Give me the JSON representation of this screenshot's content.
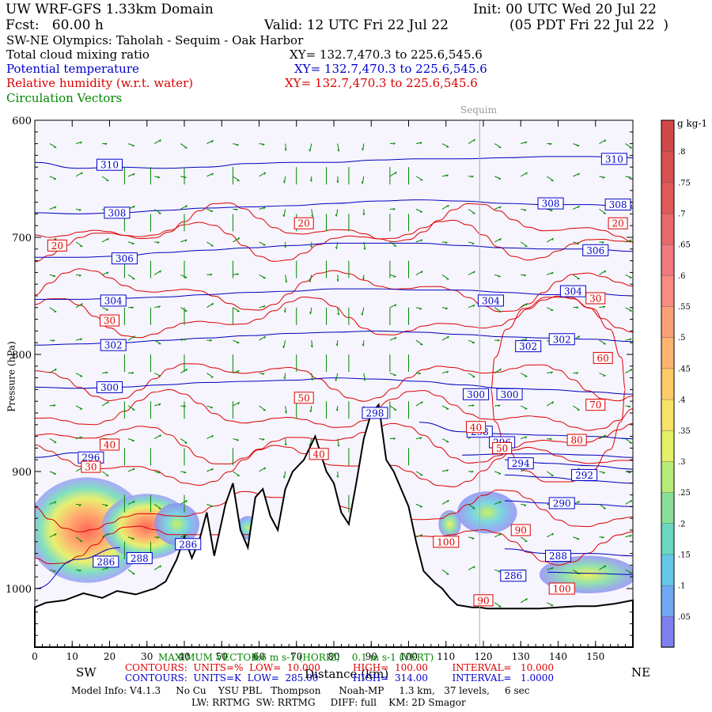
{
  "header": {
    "model": "UW WRF-GFS 1.33km Domain",
    "init": "Init: 00 UTC Wed 20 Jul 22",
    "fcst": "Fcst:   60.00 h",
    "valid": "Valid: 12 UTC Fri 22 Jul 22",
    "valid_local": "(05 PDT Fri 22 Jul 22  )",
    "cross_section": "SW-NE Olympics: Taholah - Sequim - Oak Harbor"
  },
  "fields": [
    {
      "name": "Total cloud mixing ratio",
      "xy": "XY= 132.7,470.3 to 225.6,545.6",
      "color": "#000000"
    },
    {
      "name": "Potential temperature",
      "xy": "XY= 132.7,470.3 to 225.6,545.6",
      "color": "#0000cc"
    },
    {
      "name": "Relative humidity (w.r.t. water)",
      "xy": "XY= 132.7,470.3 to 225.6,545.6",
      "color": "#dd0000"
    },
    {
      "name": "Circulation Vectors",
      "xy": "",
      "color": "#008800"
    }
  ],
  "chart_data": {
    "type": "cross-section",
    "xlabel": "Distance (km)",
    "ylabel": "Pressure (hPa)",
    "x_range": [
      0,
      160
    ],
    "y_range": [
      1050,
      600
    ],
    "x_ticks": [
      0,
      10,
      20,
      30,
      40,
      50,
      60,
      70,
      80,
      90,
      100,
      110,
      120,
      130,
      140,
      150
    ],
    "y_ticks": [
      600,
      700,
      800,
      900,
      1000
    ],
    "y_tick_labels": [
      "600",
      "700",
      "800",
      "900",
      "1000"
    ],
    "end_labels": {
      "left": "SW",
      "right": "NE"
    },
    "marker": {
      "label": "Sequim",
      "x": 119
    },
    "terrain": {
      "x": [
        0,
        3,
        8,
        13,
        18,
        22,
        27,
        32,
        35,
        38,
        40,
        42,
        44,
        46,
        48,
        51,
        53,
        55,
        57,
        59,
        61,
        63,
        65,
        67,
        69,
        72,
        75,
        78,
        80,
        82,
        84,
        86,
        88,
        90,
        92,
        94,
        96,
        98,
        100,
        102,
        104,
        107,
        109,
        111,
        113,
        115,
        117,
        119,
        121,
        124,
        128,
        135,
        140,
        145,
        150,
        155,
        160
      ],
      "p": [
        1016,
        1012,
        1010,
        1004,
        1008,
        1002,
        1005,
        1000,
        994,
        975,
        956,
        974,
        959,
        935,
        972,
        928,
        910,
        950,
        965,
        922,
        915,
        938,
        950,
        915,
        900,
        890,
        870,
        900,
        910,
        935,
        945,
        910,
        872,
        850,
        843,
        890,
        900,
        915,
        930,
        960,
        985,
        995,
        1000,
        1008,
        1014,
        1015,
        1016,
        1016,
        1017,
        1017,
        1017,
        1017,
        1016,
        1015,
        1015,
        1013,
        1010
      ]
    },
    "theta": {
      "levels": [
        286,
        288,
        290,
        292,
        294,
        296,
        298,
        300,
        302,
        304,
        306,
        308,
        310
      ],
      "units": "K",
      "contours": [
        {
          "v": 310,
          "p": [
            636,
            641,
            640,
            641,
            640,
            637,
            636,
            636,
            634,
            633,
            633,
            632,
            631,
            631,
            632
          ]
        },
        {
          "v": 308,
          "p": [
            679,
            680,
            679,
            677,
            675,
            674,
            673,
            671,
            669,
            668,
            669,
            671,
            672,
            672,
            675
          ]
        },
        {
          "v": 306,
          "p": [
            717,
            717,
            716,
            713,
            711,
            709,
            707,
            705,
            705,
            705,
            707,
            709,
            710,
            710,
            712
          ]
        },
        {
          "v": 304,
          "p": [
            753,
            753,
            752,
            751,
            749,
            747,
            746,
            744,
            744,
            745,
            745,
            747,
            749,
            748,
            750
          ]
        },
        {
          "v": 302,
          "p": [
            792,
            791,
            790,
            788,
            786,
            784,
            782,
            781,
            780,
            781,
            783,
            785,
            786,
            787,
            789
          ]
        },
        {
          "v": 300,
          "p": [
            828,
            829,
            828,
            826,
            824,
            823,
            822,
            820,
            821,
            823,
            826,
            829,
            830,
            832,
            834
          ]
        },
        {
          "v": 298,
          "p": [
            null,
            null,
            null,
            null,
            null,
            null,
            null,
            null,
            847,
            858,
            866,
            868,
            869,
            870,
            872
          ]
        },
        {
          "v": 296,
          "p": [
            888,
            884,
            null,
            null,
            null,
            null,
            null,
            null,
            null,
            null,
            886,
            885,
            885,
            886,
            888
          ]
        },
        {
          "v": 294,
          "p": [
            null,
            null,
            null,
            null,
            null,
            null,
            null,
            null,
            null,
            null,
            null,
            890,
            893,
            895,
            898
          ]
        },
        {
          "v": 292,
          "p": [
            null,
            null,
            null,
            null,
            null,
            null,
            null,
            null,
            null,
            null,
            null,
            903,
            905,
            908,
            910
          ]
        },
        {
          "v": 290,
          "p": [
            null,
            null,
            null,
            null,
            null,
            null,
            null,
            null,
            null,
            null,
            null,
            925,
            927,
            928,
            930
          ]
        },
        {
          "v": 288,
          "p": [
            null,
            null,
            null,
            null,
            null,
            null,
            null,
            null,
            null,
            null,
            null,
            966,
            970,
            970,
            972
          ]
        },
        {
          "v": 286,
          "p": [
            1000,
            975,
            965,
            null,
            null,
            null,
            null,
            null,
            null,
            null,
            null,
            null,
            986,
            987,
            988
          ]
        }
      ],
      "labels": [
        {
          "v": "310",
          "x": 20,
          "p": 638
        },
        {
          "v": "310",
          "x": 155,
          "p": 633
        },
        {
          "v": "308",
          "x": 22,
          "p": 679
        },
        {
          "v": "308",
          "x": 138,
          "p": 671
        },
        {
          "v": "308",
          "x": 156,
          "p": 672
        },
        {
          "v": "306",
          "x": 24,
          "p": 718
        },
        {
          "v": "306",
          "x": 150,
          "p": 711
        },
        {
          "v": "304",
          "x": 21,
          "p": 754
        },
        {
          "v": "304",
          "x": 122,
          "p": 754
        },
        {
          "v": "304",
          "x": 144,
          "p": 746
        },
        {
          "v": "302",
          "x": 21,
          "p": 792
        },
        {
          "v": "302",
          "x": 132,
          "p": 793
        },
        {
          "v": "302",
          "x": 141,
          "p": 787
        },
        {
          "v": "300",
          "x": 20,
          "p": 828
        },
        {
          "v": "300",
          "x": 118,
          "p": 834
        },
        {
          "v": "300",
          "x": 127,
          "p": 834
        },
        {
          "v": "298",
          "x": 91,
          "p": 850
        },
        {
          "v": "298",
          "x": 119,
          "p": 866
        },
        {
          "v": "296",
          "x": 15,
          "p": 888
        },
        {
          "v": "296",
          "x": 125,
          "p": 875
        },
        {
          "v": "294",
          "x": 130,
          "p": 893
        },
        {
          "v": "292",
          "x": 147,
          "p": 903
        },
        {
          "v": "290",
          "x": 141,
          "p": 927
        },
        {
          "v": "288",
          "x": 140,
          "p": 972
        },
        {
          "v": "286",
          "x": 128,
          "p": 989
        },
        {
          "v": "286",
          "x": 41,
          "p": 962
        },
        {
          "v": "286",
          "x": 19,
          "p": 977
        },
        {
          "v": "288",
          "x": 28,
          "p": 974
        }
      ]
    },
    "rh": {
      "units": "%",
      "labels": [
        {
          "v": "20",
          "x": 6,
          "p": 707
        },
        {
          "v": "20",
          "x": 72,
          "p": 688
        },
        {
          "v": "20",
          "x": 156,
          "p": 688
        },
        {
          "v": "30",
          "x": 20,
          "p": 771
        },
        {
          "v": "30",
          "x": 150,
          "p": 752
        },
        {
          "v": "50",
          "x": 72,
          "p": 837
        },
        {
          "v": "60",
          "x": 152,
          "p": 803
        },
        {
          "v": "70",
          "x": 150,
          "p": 843
        },
        {
          "v": "40",
          "x": 20,
          "p": 877
        },
        {
          "v": "40",
          "x": 118,
          "p": 862
        },
        {
          "v": "40",
          "x": 76,
          "p": 885
        },
        {
          "v": "50",
          "x": 125,
          "p": 880
        },
        {
          "v": "30",
          "x": 15,
          "p": 896
        },
        {
          "v": "80",
          "x": 145,
          "p": 873
        },
        {
          "v": "90",
          "x": 130,
          "p": 950
        },
        {
          "v": "100",
          "x": 110,
          "p": 960
        },
        {
          "v": "100",
          "x": 141,
          "p": 1000
        },
        {
          "v": "90",
          "x": 120,
          "p": 1010
        }
      ]
    },
    "cloud_colorbar": {
      "units": "g kg-1",
      "ticks": [
        ".05",
        ".1",
        ".15",
        ".2",
        ".25",
        ".3",
        ".35",
        ".4",
        ".45",
        ".5",
        ".55",
        ".6",
        ".65",
        ".7",
        ".75",
        ".8"
      ]
    },
    "legend_rows": [
      {
        "label": "MAXIMUM VECTOR:",
        "value": "6.6 m s-1 (HORIZ)    0.1 m s-1 (VERT)"
      },
      {
        "label": "CONTOURS:  UNITS=%  LOW=  10.000",
        "value": "HIGH=  100.00        INTERVAL=   10.000"
      },
      {
        "label": "CONTOURS:  UNITS=K  LOW=  285.00",
        "value": "HIGH=  314.00        INTERVAL=   1.0000"
      }
    ]
  },
  "footer": {
    "line1": "Model Info: V4.1.3     No Cu    YSU PBL   Thompson      Noah-MP     1.3 km,   37 levels,     6 sec",
    "line2": "LW: RRTMG  SW: RRTMG     DIFF: full    KM: 2D Smagor"
  }
}
